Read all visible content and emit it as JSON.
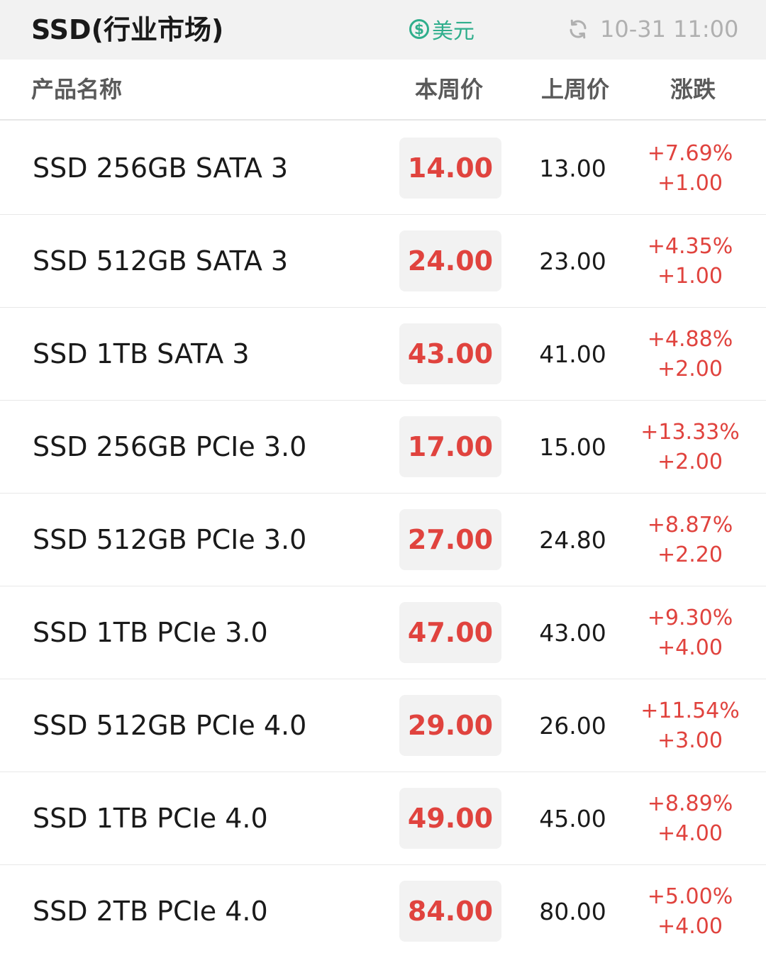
{
  "header": {
    "title": "SSD(行业市场)",
    "currency_label": "美元",
    "currency_icon_glyph": "$",
    "updated_time": "10-31 11:00"
  },
  "columns": {
    "name": "产品名称",
    "this_week": "本周价",
    "last_week": "上周价",
    "change": "涨跌"
  },
  "rows": [
    {
      "name": "SSD 256GB SATA 3",
      "this_week": "14.00",
      "last_week": "13.00",
      "change_pct": "+7.69%",
      "change_abs": "+1.00"
    },
    {
      "name": "SSD 512GB SATA 3",
      "this_week": "24.00",
      "last_week": "23.00",
      "change_pct": "+4.35%",
      "change_abs": "+1.00"
    },
    {
      "name": "SSD 1TB SATA 3",
      "this_week": "43.00",
      "last_week": "41.00",
      "change_pct": "+4.88%",
      "change_abs": "+2.00"
    },
    {
      "name": "SSD 256GB PCIe 3.0",
      "this_week": "17.00",
      "last_week": "15.00",
      "change_pct": "+13.33%",
      "change_abs": "+2.00"
    },
    {
      "name": "SSD 512GB PCIe 3.0",
      "this_week": "27.00",
      "last_week": "24.80",
      "change_pct": "+8.87%",
      "change_abs": "+2.20"
    },
    {
      "name": "SSD 1TB PCIe 3.0",
      "this_week": "47.00",
      "last_week": "43.00",
      "change_pct": "+9.30%",
      "change_abs": "+4.00"
    },
    {
      "name": "SSD 512GB PCIe 4.0",
      "this_week": "29.00",
      "last_week": "26.00",
      "change_pct": "+11.54%",
      "change_abs": "+3.00"
    },
    {
      "name": "SSD 1TB PCIe 4.0",
      "this_week": "49.00",
      "last_week": "45.00",
      "change_pct": "+8.89%",
      "change_abs": "+4.00"
    },
    {
      "name": "SSD 2TB PCIe 4.0",
      "this_week": "84.00",
      "last_week": "80.00",
      "change_pct": "+5.00%",
      "change_abs": "+4.00"
    }
  ],
  "colors": {
    "up": "#e0433e",
    "currency": "#2fae8c",
    "muted": "#b0b0b0"
  },
  "icons": {
    "currency": "dollar-circle-icon",
    "refresh": "refresh-icon"
  }
}
